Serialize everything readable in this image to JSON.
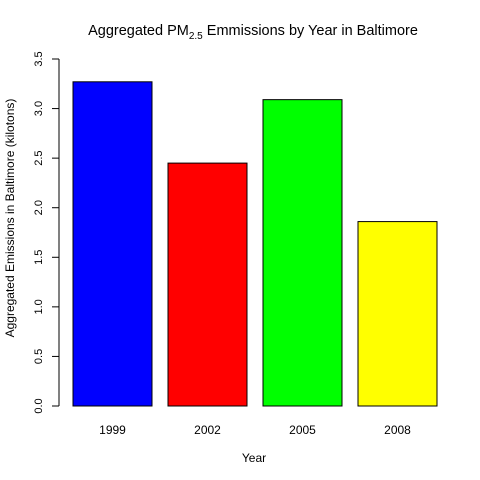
{
  "chart_data": {
    "type": "bar",
    "title": {
      "prefix": "Aggregated PM",
      "subscript": "2.5",
      "suffix": " Emmissions by Year in Baltimore"
    },
    "xlabel": "Year",
    "ylabel": "Aggregated Emissions in Baltimore (kilotons)",
    "categories": [
      "1999",
      "2002",
      "2005",
      "2008"
    ],
    "values": [
      3.27,
      2.45,
      3.09,
      1.86
    ],
    "colors": [
      "#0000ff",
      "#ff0000",
      "#00ff00",
      "#ffff00"
    ],
    "ylim": [
      0,
      3.5
    ],
    "yticks": [
      0,
      0.5,
      1,
      1.5,
      2,
      2.5,
      3,
      3.5
    ],
    "ytick_labels": [
      "0.0",
      "0.5",
      "1.0",
      "1.5",
      "2.0",
      "2.5",
      "3.0",
      "3.5"
    ],
    "grid": false,
    "legend": "none"
  }
}
